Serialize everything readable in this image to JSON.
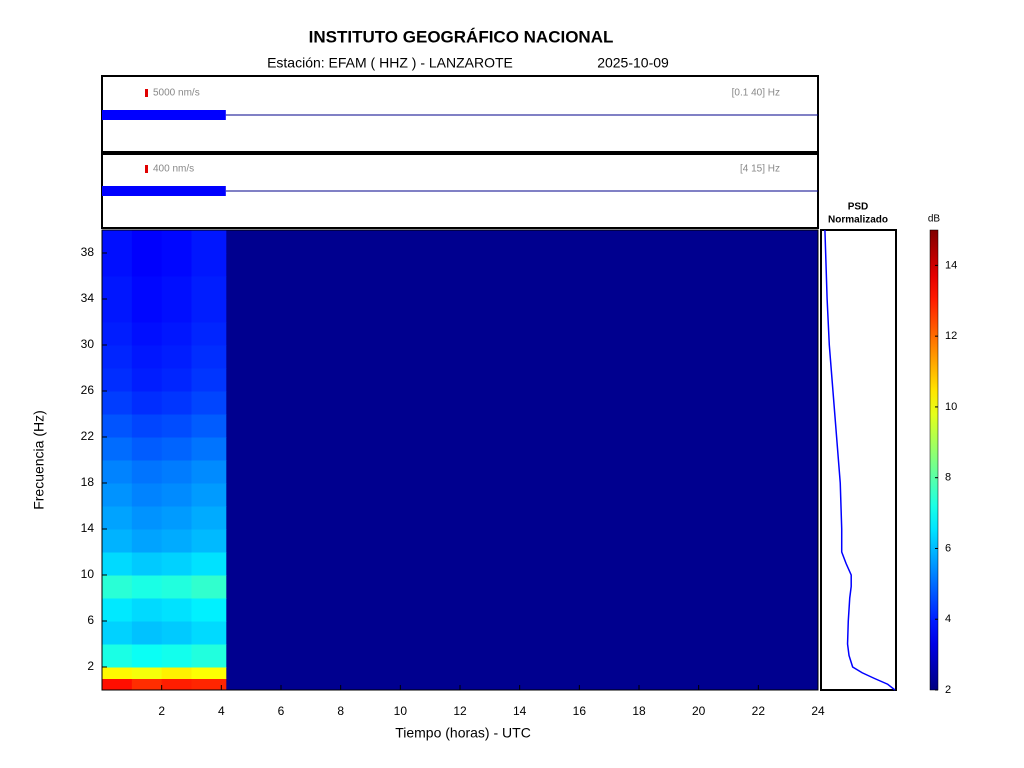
{
  "chart_data": {
    "type": "heatmap",
    "title": "INSTITUTO GEOGRÁFICO NACIONAL",
    "subtitle": "Estación:  EFAM ( HHZ ) - LANZAROTE",
    "date": "2025-10-09",
    "xlabel": "Tiempo (horas) - UTC",
    "ylabel": "Frecuencia  (Hz)",
    "xlim": [
      0,
      24
    ],
    "xticks": [
      2,
      4,
      6,
      8,
      10,
      12,
      14,
      16,
      18,
      20,
      22,
      24
    ],
    "ylim": [
      0,
      40
    ],
    "yticks": [
      2,
      6,
      10,
      14,
      18,
      22,
      26,
      30,
      34,
      38
    ],
    "time_bins": [
      0,
      1,
      2,
      3,
      4.15
    ],
    "freq_bins": [
      0,
      1,
      2,
      4,
      6,
      8,
      10,
      12,
      14,
      16,
      18,
      20,
      22,
      24,
      26,
      28,
      30,
      32,
      34,
      36,
      38,
      40
    ],
    "values": [
      [
        13.2,
        12.8,
        13.0,
        12.9
      ],
      [
        10.2,
        10.0,
        10.3,
        10.1
      ],
      [
        7.2,
        7.0,
        7.1,
        7.3
      ],
      [
        6.3,
        6.1,
        6.2,
        6.4
      ],
      [
        6.6,
        6.4,
        6.5,
        6.7
      ],
      [
        7.4,
        7.2,
        7.3,
        7.5
      ],
      [
        6.4,
        6.2,
        6.3,
        6.5
      ],
      [
        5.9,
        5.7,
        5.8,
        6.0
      ],
      [
        5.7,
        5.5,
        5.6,
        5.8
      ],
      [
        5.5,
        5.3,
        5.4,
        5.6
      ],
      [
        5.3,
        5.1,
        5.2,
        5.4
      ],
      [
        5.0,
        4.8,
        4.9,
        5.1
      ],
      [
        4.7,
        4.5,
        4.6,
        4.8
      ],
      [
        4.4,
        4.2,
        4.3,
        4.5
      ],
      [
        4.2,
        4.0,
        4.1,
        4.3
      ],
      [
        4.1,
        3.9,
        4.0,
        4.2
      ],
      [
        4.0,
        3.8,
        3.9,
        4.1
      ],
      [
        3.9,
        3.7,
        3.8,
        4.0
      ],
      [
        3.9,
        3.7,
        3.8,
        4.0
      ],
      [
        3.8,
        3.6,
        3.7,
        3.9
      ],
      [
        3.8,
        3.6,
        3.7,
        3.9
      ]
    ],
    "colorbar": {
      "label": "dB",
      "clim": [
        2,
        15
      ],
      "ticks": [
        2,
        4,
        6,
        8,
        10,
        12,
        14
      ]
    },
    "psd": {
      "title": [
        "PSD",
        "Normalizado"
      ],
      "xlim": [
        0,
        1
      ],
      "frequencies": [
        0,
        0.5,
        1,
        1.5,
        2,
        3,
        4,
        6,
        8,
        9,
        10,
        11,
        12,
        14,
        18,
        22,
        26,
        30,
        34,
        38,
        40
      ],
      "values": [
        1.0,
        0.9,
        0.72,
        0.55,
        0.42,
        0.37,
        0.35,
        0.36,
        0.38,
        0.4,
        0.4,
        0.33,
        0.27,
        0.27,
        0.25,
        0.2,
        0.15,
        0.1,
        0.07,
        0.05,
        0.04
      ]
    },
    "traces": [
      {
        "scale": "5000 nm/s",
        "band": "[0.1 40] Hz"
      },
      {
        "scale": "400 nm/s",
        "band": "[4 15] Hz"
      }
    ],
    "data_end": 4.15
  }
}
